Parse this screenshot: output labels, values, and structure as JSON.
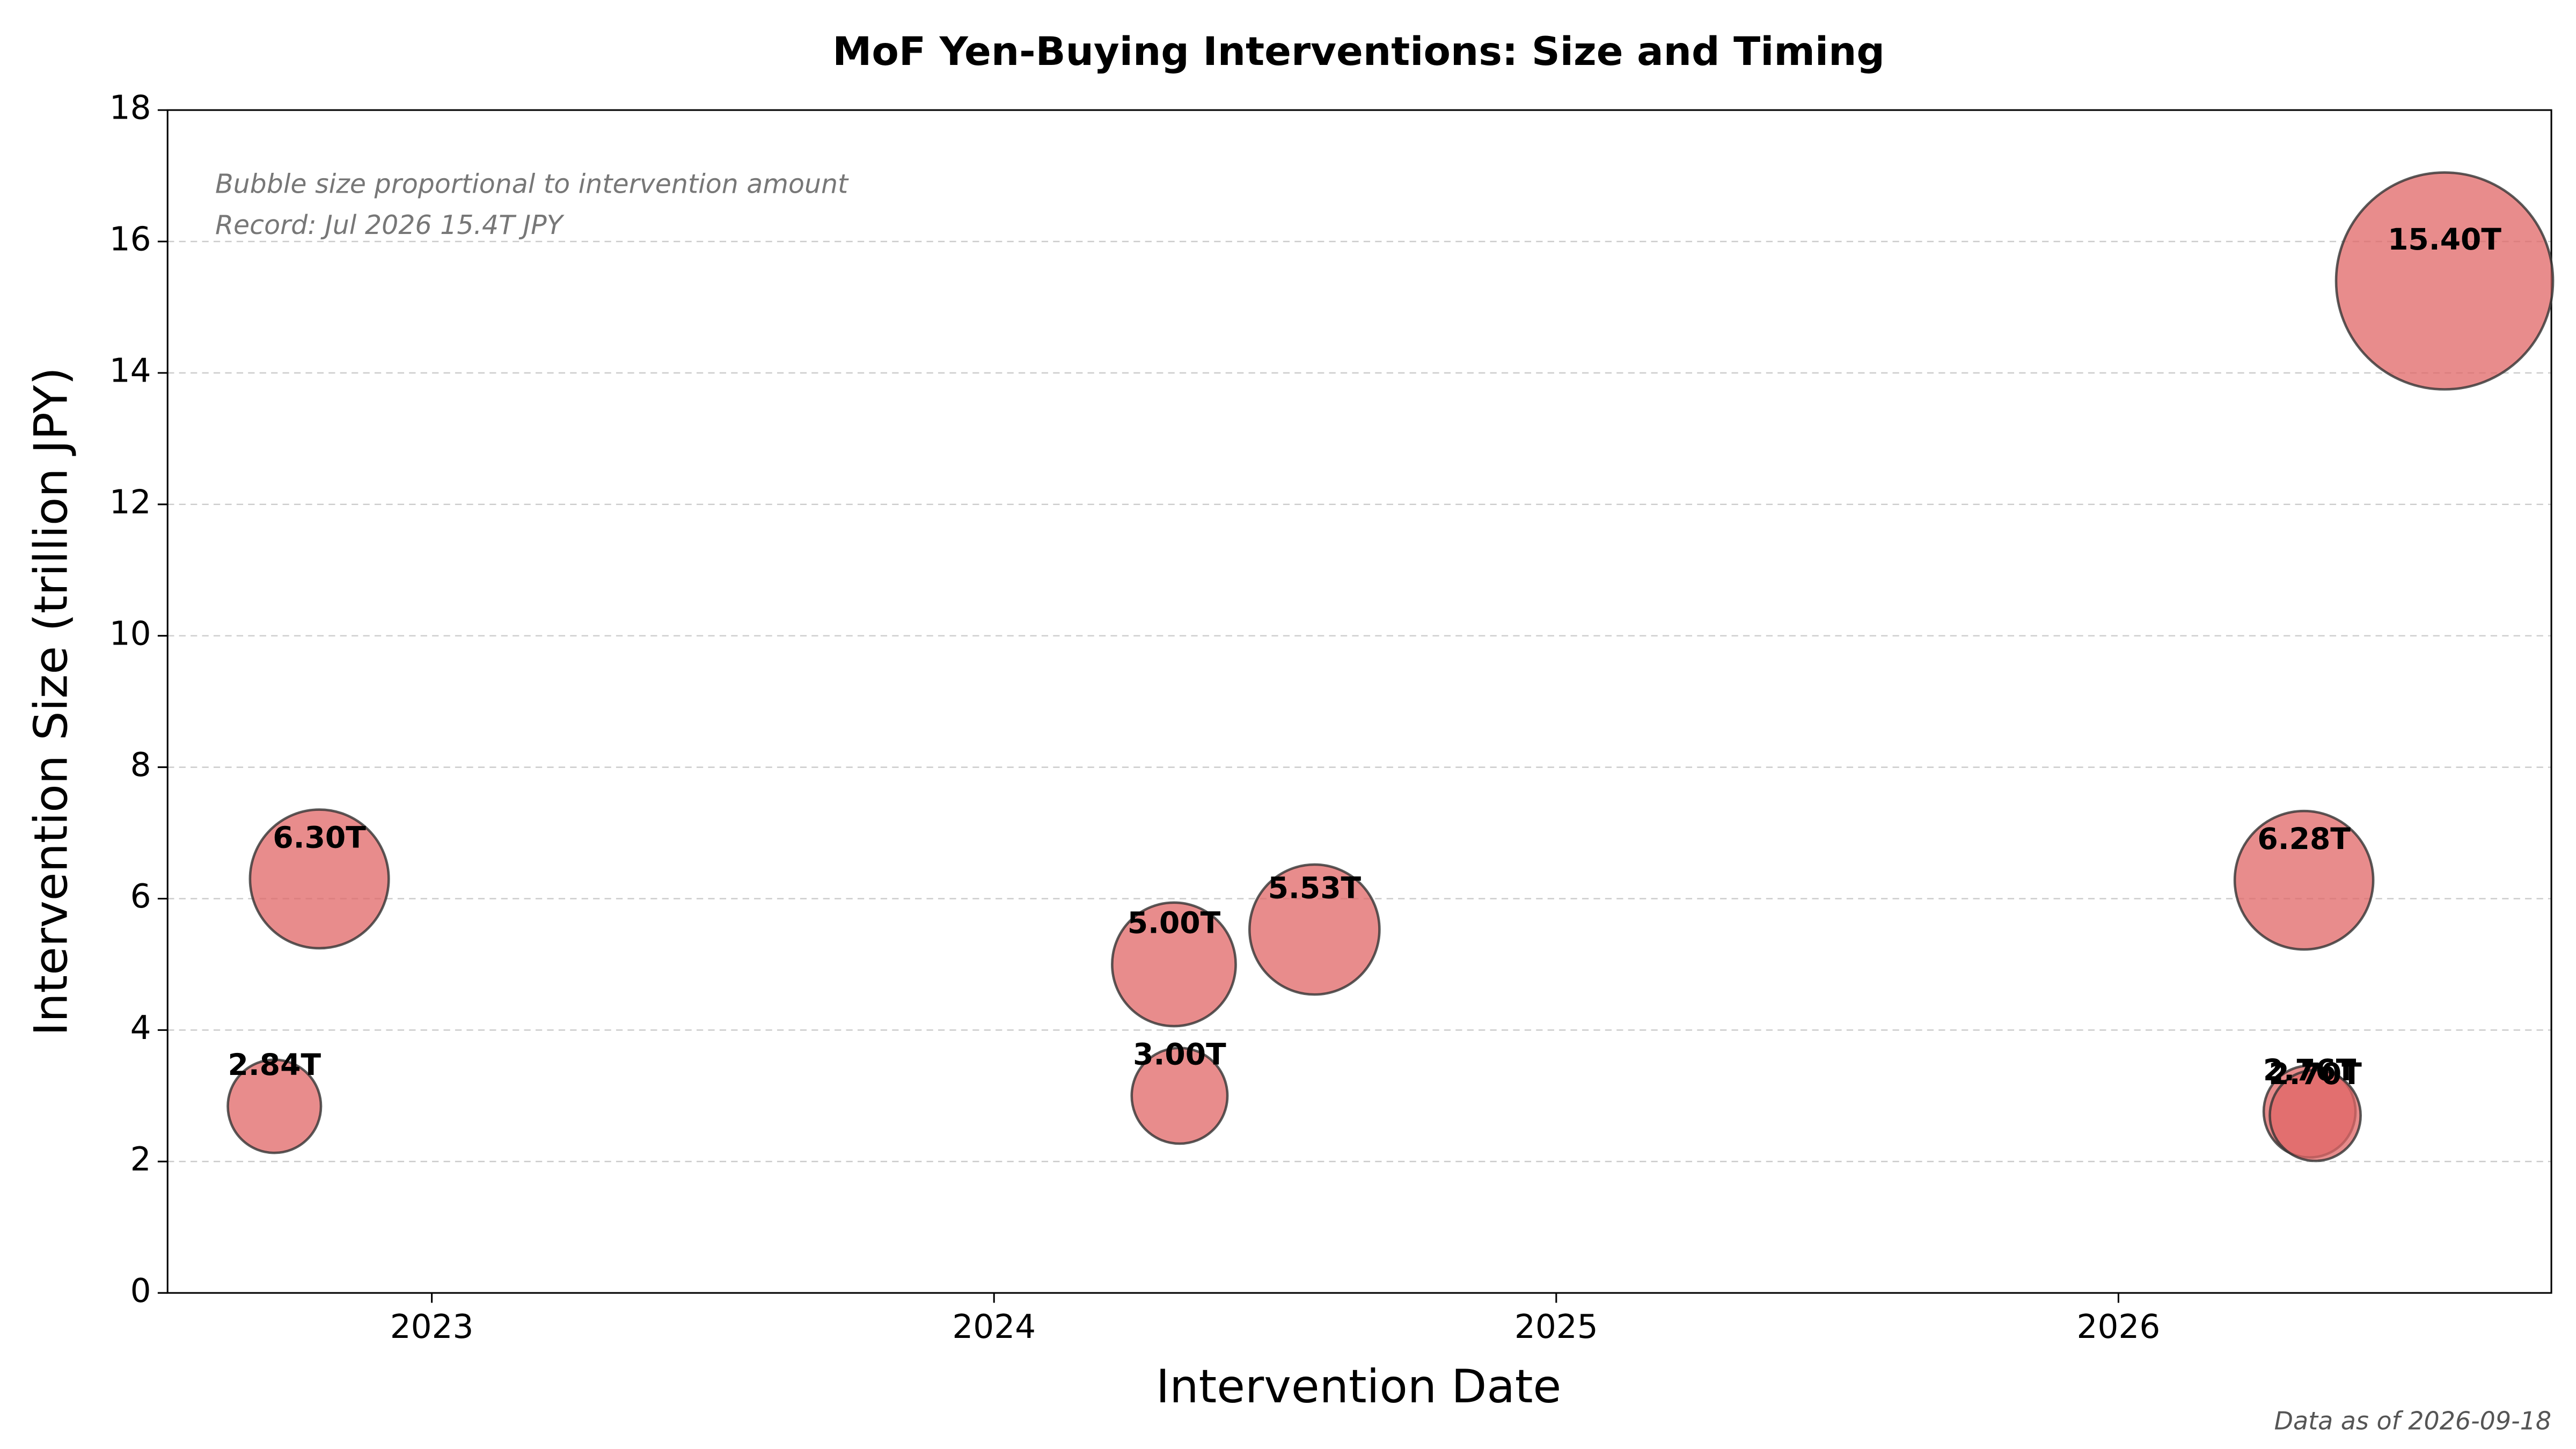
{
  "chart_data": {
    "type": "bubble",
    "title": "MoF Yen-Buying Interventions: Size and Timing",
    "x_label": "Intervention Date",
    "y_label": "Intervention Size (trillion JPY)",
    "annotations": [
      "Bubble size proportional to intervention amount",
      "Record: Jul 2026 15.4T JPY"
    ],
    "footnote": "Data as of 2026-09-18",
    "x": [
      2022.72,
      2022.8,
      2024.32,
      2024.33,
      2024.57,
      2026.33,
      2026.34,
      2026.35,
      2026.58
    ],
    "values": [
      2.84,
      6.3,
      5.0,
      3.0,
      5.53,
      6.28,
      2.76,
      2.7,
      15.4
    ],
    "value_labels": [
      "2.84T",
      "6.30T",
      "5.00T",
      "3.00T",
      "5.53T",
      "6.28T",
      "2.76T",
      "2.70T",
      "15.40T"
    ],
    "color": "#e06666",
    "xlim": [
      2022.53,
      2026.77
    ],
    "xticks": [
      2023,
      2024,
      2025,
      2026
    ],
    "ylim": [
      0,
      18
    ],
    "yticks": [
      0,
      2,
      4,
      6,
      8,
      10,
      12,
      14,
      16,
      18
    ],
    "grid": true
  }
}
